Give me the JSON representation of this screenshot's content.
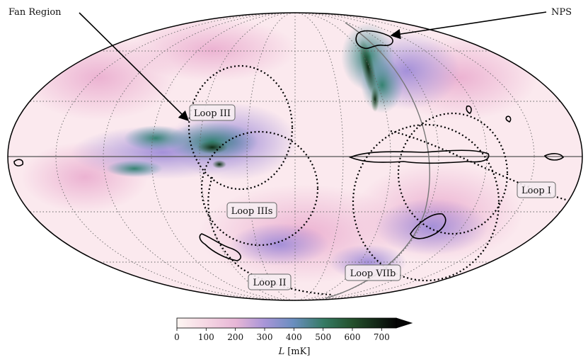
{
  "annotations": [
    {
      "id": "fan-region",
      "text": "Fan Region"
    },
    {
      "id": "nps",
      "text": "NPS"
    }
  ],
  "loops": [
    {
      "id": "loop-iii",
      "label": "Loop III"
    },
    {
      "id": "loop-i",
      "label": "Loop I"
    },
    {
      "id": "loop-iiis",
      "label": "Loop IIIs"
    },
    {
      "id": "loop-ii",
      "label": "Loop II"
    },
    {
      "id": "loop-viib",
      "label": "Loop VIIb"
    }
  ],
  "colorbar": {
    "label_symbol": "L",
    "label_unit": "[mK]",
    "ticks": [
      "0",
      "100",
      "200",
      "300",
      "400",
      "500",
      "600",
      "700"
    ],
    "range": [
      0,
      750
    ],
    "colors": [
      "#fdf4f0",
      "#f6c9da",
      "#c8a2d8",
      "#8f86cf",
      "#4f87a8",
      "#2f7a5a",
      "#1f4a22",
      "#000000"
    ]
  }
}
